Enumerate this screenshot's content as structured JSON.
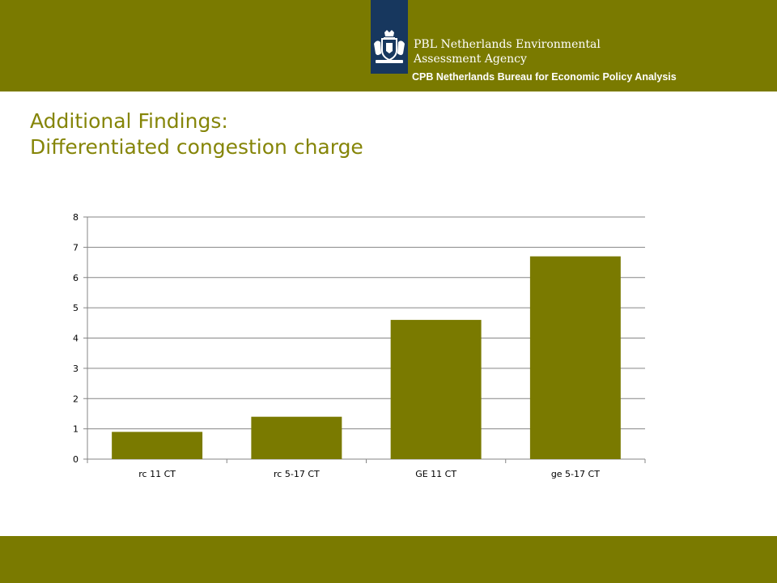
{
  "header": {
    "org_line1": "PBL Netherlands Environmental",
    "org_line2": "Assessment Agency",
    "bureau": "CPB Netherlands Bureau for Economic Policy Analysis",
    "brand_color": "#7a7a00",
    "logo_color": "#17375e",
    "logo_icon": "royal-crest-icon"
  },
  "title": {
    "line1": "Additional Findings:",
    "line2": "Differentiated congestion charge"
  },
  "chart_data": {
    "type": "bar",
    "categories": [
      "rc 11 CT",
      "rc 5-17 CT",
      "GE 11 CT",
      "ge 5-17 CT"
    ],
    "values": [
      0.9,
      1.4,
      4.6,
      6.7
    ],
    "title": "",
    "xlabel": "",
    "ylabel": "",
    "ylim": [
      0,
      8
    ],
    "yticks": [
      "0",
      "1",
      "2",
      "3",
      "4",
      "5",
      "6",
      "7",
      "8"
    ],
    "grid": true,
    "bar_color": "#7a7a00"
  }
}
